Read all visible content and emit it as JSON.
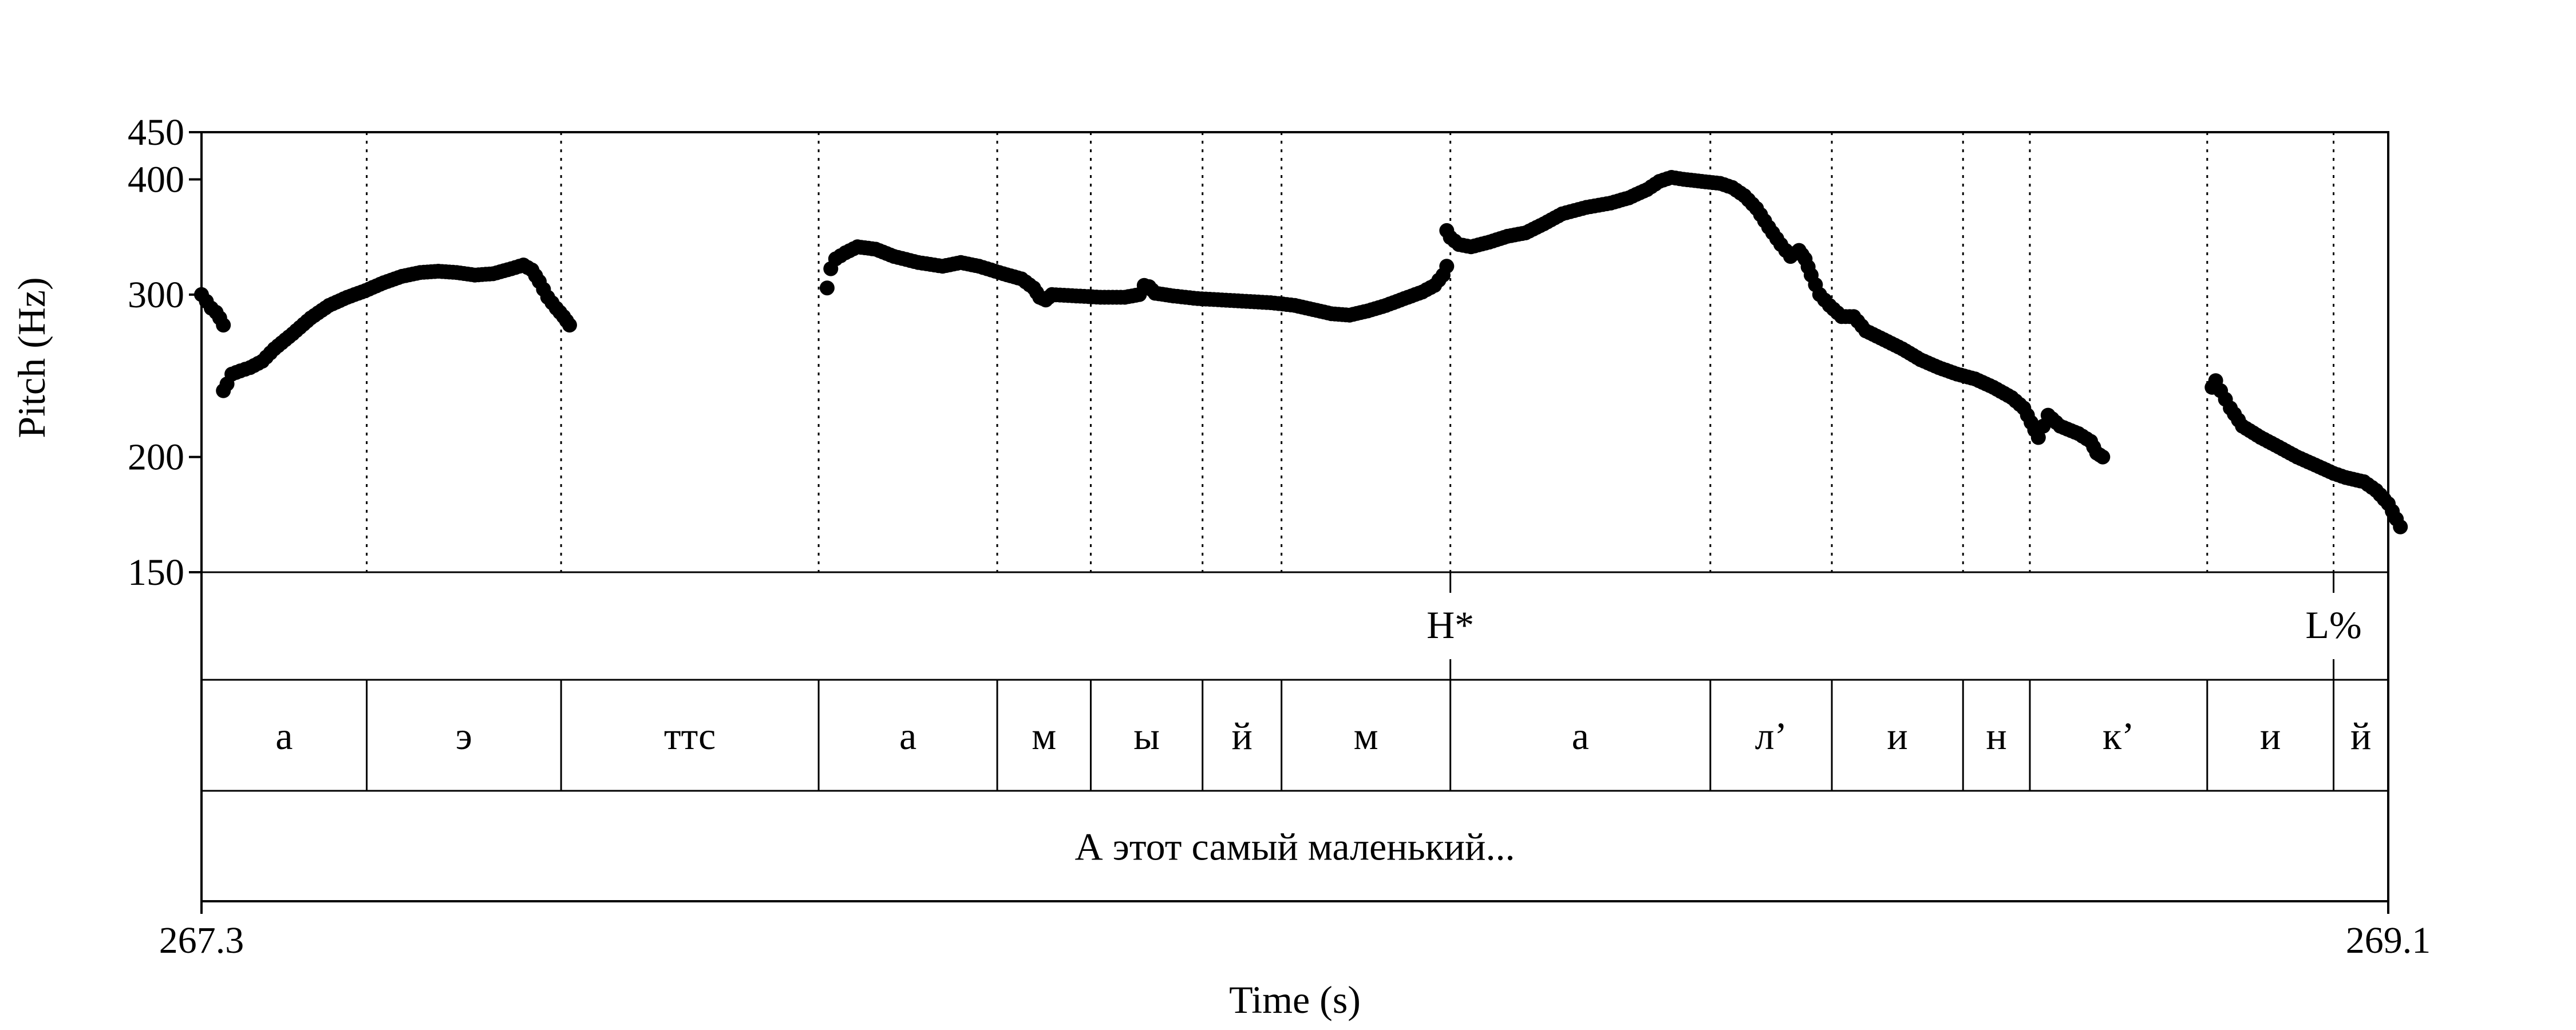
{
  "chart_data": {
    "type": "scatter",
    "xlabel": "Time (s)",
    "ylabel": "Pitch (Hz)",
    "xlim": [
      267.3,
      269.1
    ],
    "ylim": [
      150,
      450
    ],
    "x_tick_labels": [
      "267.3",
      "269.1"
    ],
    "y_ticks": [
      150,
      200,
      300,
      400,
      450
    ],
    "grid": false,
    "point_color": "#000000",
    "pitch_contours": [
      [
        [
          267.3,
          300
        ],
        [
          267.304,
          295
        ],
        [
          267.308,
          290
        ],
        [
          267.312,
          287
        ],
        [
          267.315,
          283
        ],
        [
          267.318,
          278
        ]
      ],
      [
        [
          267.318,
          236
        ],
        [
          267.321,
          240
        ],
        [
          267.325,
          246
        ],
        [
          267.332,
          248
        ],
        [
          267.34,
          250
        ],
        [
          267.35,
          254
        ],
        [
          267.36,
          262
        ],
        [
          267.375,
          272
        ],
        [
          267.39,
          283
        ],
        [
          267.405,
          292
        ],
        [
          267.42,
          298
        ],
        [
          267.435,
          303
        ],
        [
          267.45,
          309
        ],
        [
          267.465,
          314
        ],
        [
          267.48,
          317
        ],
        [
          267.495,
          318
        ],
        [
          267.51,
          317
        ],
        [
          267.525,
          315
        ],
        [
          267.54,
          316
        ],
        [
          267.555,
          320
        ],
        [
          267.565,
          323
        ],
        [
          267.572,
          319
        ],
        [
          267.578,
          310
        ],
        [
          267.585,
          298
        ],
        [
          267.592,
          290
        ],
        [
          267.598,
          284
        ],
        [
          267.603,
          278
        ]
      ],
      [
        [
          267.815,
          305
        ],
        [
          267.818,
          320
        ],
        [
          267.822,
          328
        ],
        [
          267.83,
          333
        ],
        [
          267.84,
          338
        ],
        [
          267.855,
          336
        ],
        [
          267.87,
          330
        ],
        [
          267.89,
          325
        ],
        [
          267.91,
          322
        ],
        [
          267.925,
          325
        ],
        [
          267.94,
          322
        ],
        [
          267.96,
          316
        ],
        [
          267.975,
          312
        ],
        [
          267.985,
          305
        ],
        [
          267.99,
          298
        ],
        [
          267.995,
          296
        ],
        [
          268.0,
          300
        ],
        [
          268.02,
          299
        ],
        [
          268.04,
          298
        ],
        [
          268.06,
          298
        ],
        [
          268.072,
          300
        ],
        [
          268.076,
          307
        ],
        [
          268.08,
          306
        ],
        [
          268.085,
          301
        ],
        [
          268.1,
          299
        ],
        [
          268.12,
          297
        ],
        [
          268.14,
          296
        ],
        [
          268.16,
          295
        ],
        [
          268.18,
          294
        ],
        [
          268.2,
          292
        ],
        [
          268.215,
          289
        ],
        [
          268.23,
          286
        ],
        [
          268.245,
          285
        ],
        [
          268.26,
          288
        ],
        [
          268.275,
          292
        ],
        [
          268.29,
          297
        ],
        [
          268.305,
          302
        ],
        [
          268.315,
          307
        ],
        [
          268.322,
          315
        ],
        [
          268.325,
          322
        ]
      ],
      [
        [
          268.325,
          352
        ],
        [
          268.328,
          346
        ],
        [
          268.335,
          340
        ],
        [
          268.345,
          338
        ],
        [
          268.36,
          342
        ],
        [
          268.375,
          347
        ],
        [
          268.39,
          350
        ],
        [
          268.405,
          358
        ],
        [
          268.42,
          367
        ],
        [
          268.44,
          373
        ],
        [
          268.46,
          377
        ],
        [
          268.475,
          382
        ],
        [
          268.49,
          390
        ],
        [
          268.5,
          398
        ],
        [
          268.51,
          402
        ],
        [
          268.52,
          400
        ],
        [
          268.535,
          398
        ],
        [
          268.55,
          396
        ],
        [
          268.56,
          392
        ],
        [
          268.57,
          384
        ],
        [
          268.58,
          372
        ],
        [
          268.59,
          355
        ],
        [
          268.6,
          340
        ],
        [
          268.608,
          330
        ],
        [
          268.615,
          335
        ],
        [
          268.62,
          328
        ],
        [
          268.625,
          315
        ],
        [
          268.632,
          300
        ],
        [
          268.64,
          292
        ],
        [
          268.65,
          284
        ],
        [
          268.66,
          284
        ],
        [
          268.67,
          274
        ],
        [
          268.685,
          268
        ],
        [
          268.7,
          262
        ],
        [
          268.715,
          255
        ],
        [
          268.73,
          250
        ],
        [
          268.745,
          246
        ],
        [
          268.76,
          243
        ],
        [
          268.775,
          238
        ],
        [
          268.79,
          232
        ],
        [
          268.8,
          226
        ],
        [
          268.806,
          218
        ],
        [
          268.812,
          210
        ],
        [
          268.82,
          222
        ],
        [
          268.83,
          216
        ],
        [
          268.845,
          212
        ],
        [
          268.855,
          208
        ],
        [
          268.86,
          202
        ],
        [
          268.865,
          200
        ]
      ],
      [
        [
          268.955,
          238
        ],
        [
          268.958,
          242
        ],
        [
          268.962,
          236
        ],
        [
          268.97,
          226
        ],
        [
          268.98,
          216
        ],
        [
          268.995,
          210
        ],
        [
          269.01,
          205
        ],
        [
          269.025,
          200
        ],
        [
          269.04,
          196
        ],
        [
          269.055,
          192
        ],
        [
          269.065,
          190
        ],
        [
          269.08,
          188
        ],
        [
          269.09,
          184
        ],
        [
          269.1,
          178
        ],
        [
          269.11,
          168
        ]
      ]
    ]
  },
  "boundaries": [
    267.436,
    267.596,
    267.808,
    267.955,
    268.032,
    268.124,
    268.189,
    268.328,
    268.542,
    268.642,
    268.75,
    268.805,
    268.951,
    269.055
  ],
  "tones": [
    {
      "label": "H*",
      "time": 268.328
    },
    {
      "label": "L%",
      "time": 269.055
    }
  ],
  "phones": [
    {
      "label": "а",
      "start": 267.3,
      "end": 267.436
    },
    {
      "label": "э",
      "start": 267.436,
      "end": 267.596
    },
    {
      "label": "ттс",
      "start": 267.596,
      "end": 267.808
    },
    {
      "label": "а",
      "start": 267.808,
      "end": 267.955
    },
    {
      "label": "м",
      "start": 267.955,
      "end": 268.032
    },
    {
      "label": "ы",
      "start": 268.032,
      "end": 268.124
    },
    {
      "label": "й",
      "start": 268.124,
      "end": 268.189
    },
    {
      "label": "м",
      "start": 268.189,
      "end": 268.328
    },
    {
      "label": "а",
      "start": 268.328,
      "end": 268.542
    },
    {
      "label": "л’",
      "start": 268.542,
      "end": 268.642
    },
    {
      "label": "и",
      "start": 268.642,
      "end": 268.75
    },
    {
      "label": "н",
      "start": 268.75,
      "end": 268.805
    },
    {
      "label": "к’",
      "start": 268.805,
      "end": 268.951
    },
    {
      "label": "и",
      "start": 268.951,
      "end": 269.055
    },
    {
      "label": "й",
      "start": 269.055,
      "end": 269.1
    }
  ],
  "words": [
    {
      "label": "А этот самый маленький...",
      "start": 267.3,
      "end": 269.1
    }
  ]
}
